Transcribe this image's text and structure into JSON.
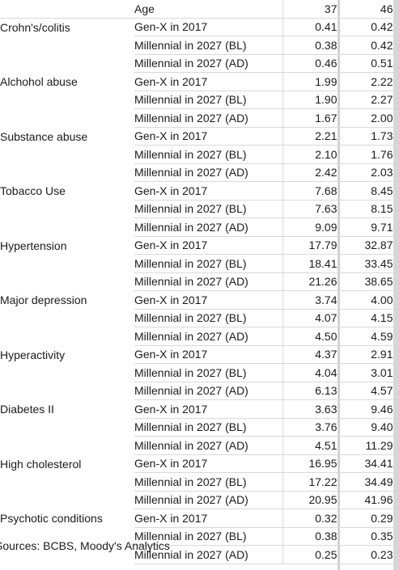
{
  "header": {
    "col0": "",
    "col1": "Age",
    "col2": "37",
    "col3": "46"
  },
  "groups": [
    {
      "condition": "Crohn's/colitis",
      "rows": [
        {
          "gen": "Gen-X in 2017",
          "a37": "0.41",
          "a46": "0.42"
        },
        {
          "gen": "Millennial in 2027 (BL)",
          "a37": "0.38",
          "a46": "0.42"
        },
        {
          "gen": "Millennial in 2027 (AD)",
          "a37": "0.46",
          "a46": "0.51"
        }
      ]
    },
    {
      "condition": "Alchohol abuse",
      "rows": [
        {
          "gen": "Gen-X in 2017",
          "a37": "1.99",
          "a46": "2.22"
        },
        {
          "gen": "Millennial in 2027 (BL)",
          "a37": "1.90",
          "a46": "2.27"
        },
        {
          "gen": "Millennial in 2027 (AD)",
          "a37": "1.67",
          "a46": "2.00"
        }
      ]
    },
    {
      "condition": "Substance abuse",
      "rows": [
        {
          "gen": "Gen-X in 2017",
          "a37": "2.21",
          "a46": "1.73"
        },
        {
          "gen": "Millennial in 2027 (BL)",
          "a37": "2.10",
          "a46": "1.76"
        },
        {
          "gen": "Millennial in 2027 (AD)",
          "a37": "2.42",
          "a46": "2.03"
        }
      ]
    },
    {
      "condition": "Tobacco Use",
      "rows": [
        {
          "gen": "Gen-X in 2017",
          "a37": "7.68",
          "a46": "8.45"
        },
        {
          "gen": "Millennial in 2027 (BL)",
          "a37": "7.63",
          "a46": "8.15"
        },
        {
          "gen": "Millennial in 2027 (AD)",
          "a37": "9.09",
          "a46": "9.71"
        }
      ]
    },
    {
      "condition": "Hypertension",
      "rows": [
        {
          "gen": "Gen-X in 2017",
          "a37": "17.79",
          "a46": "32.87"
        },
        {
          "gen": "Millennial in 2027 (BL)",
          "a37": "18.41",
          "a46": "33.45"
        },
        {
          "gen": "Millennial in 2027 (AD)",
          "a37": "21.26",
          "a46": "38.65"
        }
      ]
    },
    {
      "condition": "Major depression",
      "rows": [
        {
          "gen": "Gen-X in 2017",
          "a37": "3.74",
          "a46": "4.00"
        },
        {
          "gen": "Millennial in 2027 (BL)",
          "a37": "4.07",
          "a46": "4.15"
        },
        {
          "gen": "Millennial in 2027 (AD)",
          "a37": "4.50",
          "a46": "4.59"
        }
      ]
    },
    {
      "condition": "Hyperactivity",
      "rows": [
        {
          "gen": "Gen-X in 2017",
          "a37": "4.37",
          "a46": "2.91"
        },
        {
          "gen": "Millennial in 2027 (BL)",
          "a37": "4.04",
          "a46": "3.01"
        },
        {
          "gen": "Millennial in 2027 (AD)",
          "a37": "6.13",
          "a46": "4.57"
        }
      ]
    },
    {
      "condition": "Diabetes II",
      "rows": [
        {
          "gen": "Gen-X in 2017",
          "a37": "3.63",
          "a46": "9.46"
        },
        {
          "gen": "Millennial in 2027 (BL)",
          "a37": "3.76",
          "a46": "9.40"
        },
        {
          "gen": "Millennial in 2027 (AD)",
          "a37": "4.51",
          "a46": "11.29"
        }
      ]
    },
    {
      "condition": "High cholesterol",
      "rows": [
        {
          "gen": "Gen-X in 2017",
          "a37": "16.95",
          "a46": "34.41"
        },
        {
          "gen": "Millennial in 2027 (BL)",
          "a37": "17.22",
          "a46": "34.49"
        },
        {
          "gen": "Millennial in 2027 (AD)",
          "a37": "20.95",
          "a46": "41.96"
        }
      ]
    },
    {
      "condition": "Psychotic conditions",
      "rows": [
        {
          "gen": "Gen-X in 2017",
          "a37": "0.32",
          "a46": "0.29"
        },
        {
          "gen": "Millennial in 2027 (BL)",
          "a37": "0.38",
          "a46": "0.35"
        },
        {
          "gen": "Millennial in 2027 (AD)",
          "a37": "0.25",
          "a46": "0.23"
        }
      ]
    }
  ],
  "source": "Sources: BCBS, Moody's Analytics"
}
